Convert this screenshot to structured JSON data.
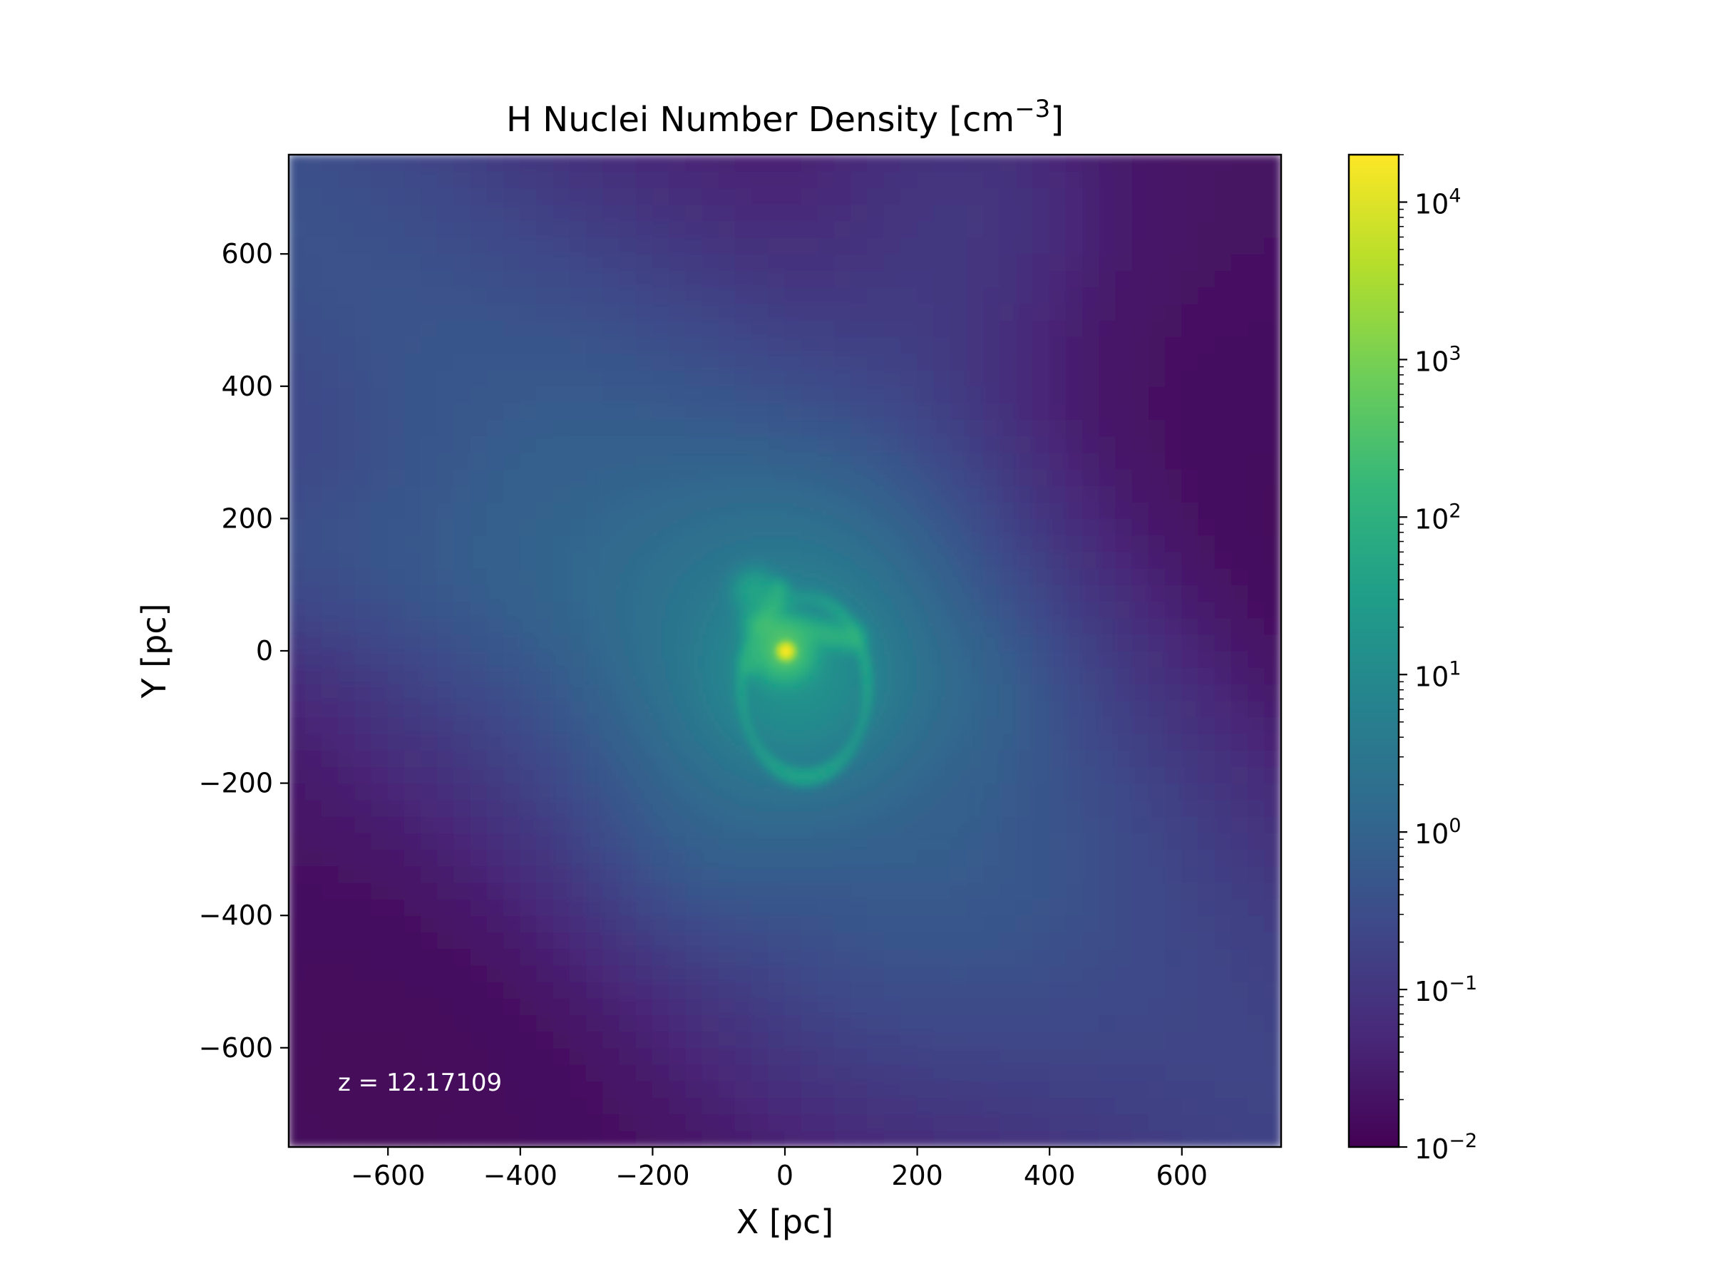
{
  "chart_data": {
    "type": "heatmap",
    "title": "H Nuclei Number Density [cm",
    "title_exponent": "−3",
    "title_suffix": "]",
    "xlabel": "X [pc]",
    "ylabel": "Y [pc]",
    "xlim": [
      -750,
      750
    ],
    "ylim": [
      -750,
      750
    ],
    "x_ticks": [
      -600,
      -400,
      -200,
      0,
      200,
      400,
      600
    ],
    "x_tick_labels": [
      "−600",
      "−400",
      "−200",
      "0",
      "200",
      "400",
      "600"
    ],
    "y_ticks": [
      -600,
      -400,
      -200,
      0,
      200,
      400,
      600
    ],
    "y_tick_labels": [
      "−600",
      "−400",
      "−200",
      "0",
      "200",
      "400",
      "600"
    ],
    "annotation": "z = 12.17109",
    "grid": false,
    "colormap": "viridis",
    "colorbar": {
      "scale": "log",
      "range": [
        0.01,
        20000
      ],
      "ticks": [
        0.01,
        0.1,
        1,
        10,
        100,
        1000,
        10000
      ],
      "tick_base": "10",
      "tick_exponents": [
        "−2",
        "−1",
        "0",
        "1",
        "2",
        "3",
        "4"
      ]
    },
    "features": {
      "peak_density_at": [
        0,
        0
      ],
      "peak_value": 20000,
      "background_low": 0.02,
      "filament_high": 0.4,
      "core_ring_value": 300
    }
  },
  "colors": {
    "viridis": [
      "#440154",
      "#482878",
      "#3e4989",
      "#31688e",
      "#26828e",
      "#1f9e89",
      "#35b779",
      "#6ece58",
      "#b5de2b",
      "#fde725"
    ],
    "annotation_text": "#ffffff",
    "axes": "#000000"
  }
}
